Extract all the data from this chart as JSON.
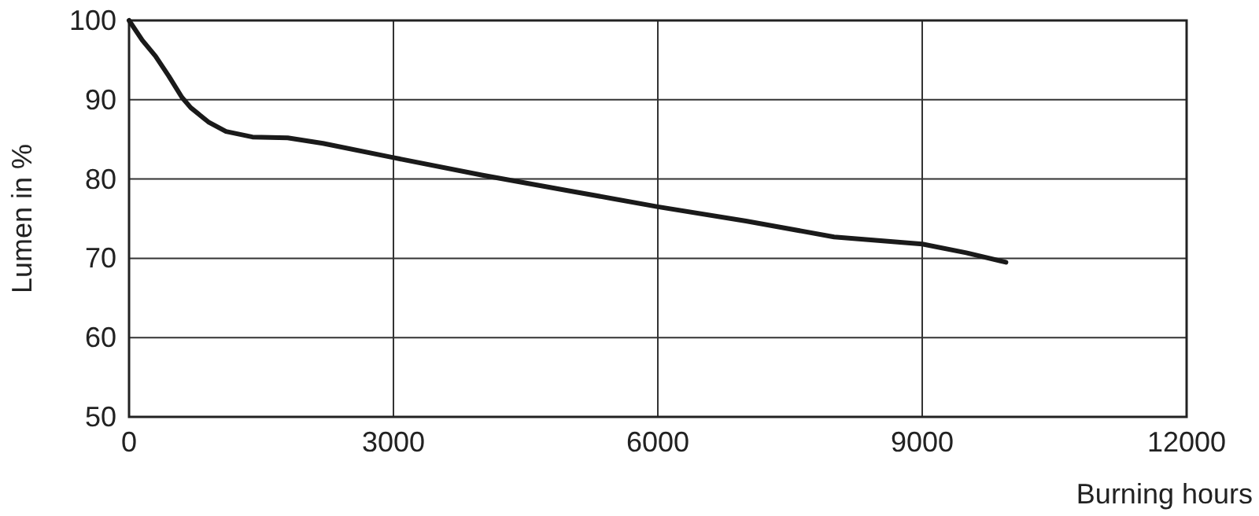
{
  "chart_data": {
    "type": "line",
    "xlabel": "Burning hours",
    "ylabel": "Lumen in %",
    "xlim": [
      0,
      12000
    ],
    "xticks": [
      0,
      3000,
      6000,
      9000,
      12000
    ],
    "ylim": [
      50,
      100
    ],
    "yticks": [
      50,
      60,
      70,
      80,
      90,
      100
    ],
    "grid": true,
    "series": [
      {
        "color": "#1a1a1a",
        "x": [
          0,
          150,
          300,
          450,
          600,
          700,
          900,
          1100,
          1400,
          1800,
          2200,
          3000,
          4000,
          5000,
          6000,
          7000,
          8000,
          9000,
          9500,
          9950
        ],
        "values": [
          100,
          97.5,
          95.5,
          93,
          90.3,
          89,
          87.2,
          86,
          85.3,
          85.2,
          84.5,
          82.7,
          80.5,
          78.5,
          76.5,
          74.7,
          72.7,
          71.8,
          70.7,
          69.5
        ]
      }
    ]
  }
}
